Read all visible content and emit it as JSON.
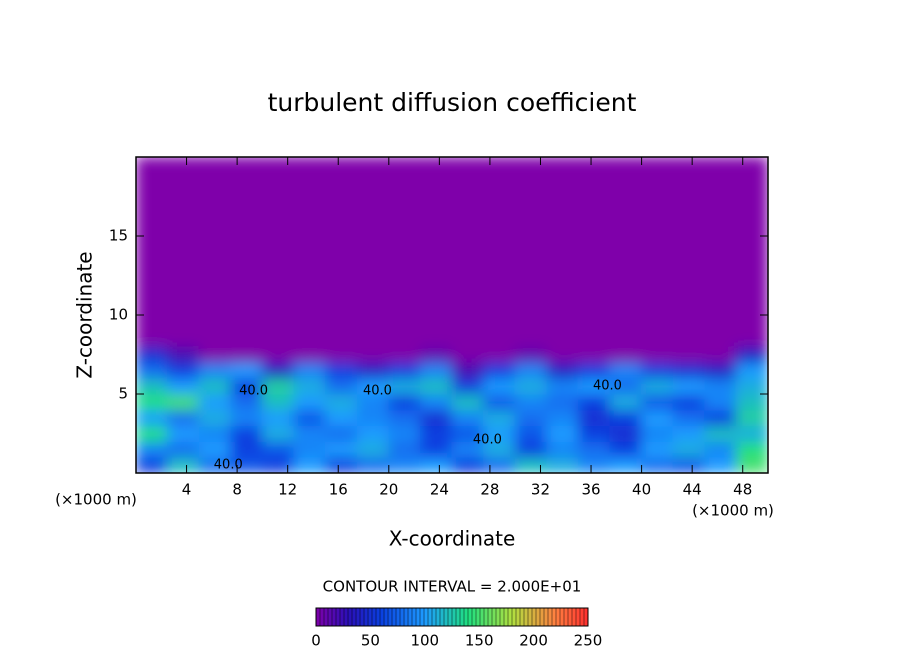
{
  "chart_data": {
    "type": "contour",
    "title": "turbulent diffusion coefficient",
    "x_label": "X-coordinate",
    "y_label": "Z-coordinate",
    "x_unit_label_left": "(×1000 m)",
    "x_unit_label_right": "(×1000 m)",
    "contour_interval_label": "CONTOUR INTERVAL = 2.000E+01",
    "xlim": [
      0,
      50
    ],
    "ylim": [
      0,
      20
    ],
    "xticks": [
      4,
      8,
      12,
      16,
      20,
      24,
      28,
      32,
      36,
      40,
      44,
      48
    ],
    "yticks": [
      5,
      10,
      15
    ],
    "x_edges": [
      0,
      2.5,
      5,
      7.5,
      10,
      12.5,
      15,
      17.5,
      20,
      22.5,
      25,
      27.5,
      30,
      32.5,
      35,
      37.5,
      40,
      42.5,
      45,
      47.5,
      50
    ],
    "y_edges": [
      0,
      1,
      2,
      3,
      4,
      5,
      6,
      7,
      8,
      20
    ],
    "z": [
      [
        60,
        120,
        80,
        70,
        60,
        100,
        60,
        80,
        90,
        100,
        60,
        80,
        120,
        110,
        90,
        100,
        80,
        70,
        100,
        150
      ],
      [
        90,
        80,
        100,
        60,
        70,
        90,
        100,
        110,
        80,
        60,
        90,
        110,
        60,
        90,
        80,
        60,
        100,
        110,
        90,
        140
      ],
      [
        140,
        100,
        90,
        60,
        110,
        90,
        80,
        100,
        90,
        60,
        70,
        100,
        70,
        100,
        60,
        50,
        90,
        100,
        120,
        110
      ],
      [
        100,
        80,
        110,
        90,
        100,
        70,
        100,
        90,
        80,
        50,
        90,
        110,
        80,
        90,
        50,
        60,
        100,
        80,
        60,
        130
      ],
      [
        140,
        150,
        100,
        80,
        120,
        100,
        110,
        90,
        60,
        90,
        120,
        70,
        90,
        80,
        60,
        110,
        70,
        60,
        90,
        120
      ],
      [
        120,
        100,
        120,
        60,
        130,
        110,
        80,
        100,
        110,
        120,
        60,
        100,
        110,
        90,
        100,
        80,
        110,
        100,
        90,
        110
      ],
      [
        80,
        60,
        90,
        100,
        40,
        90,
        60,
        40,
        60,
        90,
        20,
        60,
        90,
        40,
        60,
        90,
        60,
        50,
        40,
        100
      ],
      [
        50,
        20,
        0,
        0,
        0,
        0,
        0,
        0,
        0,
        10,
        0,
        0,
        10,
        0,
        0,
        0,
        0,
        0,
        0,
        40
      ],
      [
        0,
        0,
        0,
        0,
        0,
        0,
        0,
        0,
        0,
        0,
        0,
        0,
        0,
        0,
        0,
        0,
        0,
        0,
        0,
        0
      ]
    ],
    "colormap": [
      {
        "value": 0,
        "color": "#7f00aa"
      },
      {
        "value": 30,
        "color": "#2a10b8"
      },
      {
        "value": 60,
        "color": "#0a40e0"
      },
      {
        "value": 100,
        "color": "#1e9cff"
      },
      {
        "value": 140,
        "color": "#20e080"
      },
      {
        "value": 180,
        "color": "#b0e040"
      },
      {
        "value": 220,
        "color": "#ff8040"
      },
      {
        "value": 250,
        "color": "#ff3030"
      }
    ],
    "colorbar_lim": [
      0,
      250
    ],
    "colorbar_ticks": [
      0,
      50,
      100,
      150,
      200,
      250
    ],
    "annotations": [
      {
        "text": "40.0",
        "x": 9.3,
        "y": 5.2
      },
      {
        "text": "40.0",
        "x": 19.1,
        "y": 5.2
      },
      {
        "text": "40.0",
        "x": 27.8,
        "y": 2.1
      },
      {
        "text": "40.0",
        "x": 37.3,
        "y": 5.5
      },
      {
        "text": "40.0",
        "x": 7.3,
        "y": 0.5
      }
    ]
  }
}
